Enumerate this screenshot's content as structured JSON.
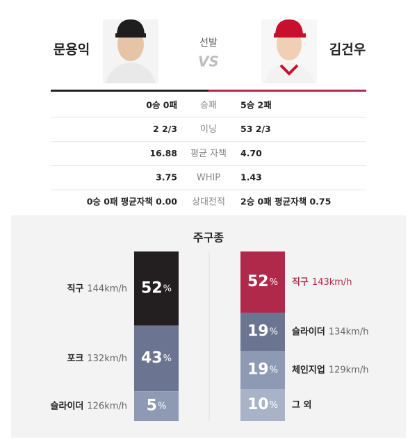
{
  "header": {
    "left_pitcher": "문용익",
    "label": "선발",
    "vs": "VS",
    "right_pitcher": "김건우"
  },
  "stats": [
    {
      "left": "0승 0패",
      "label": "승패",
      "right": "5승 2패"
    },
    {
      "left": "2 2/3",
      "label": "이닝",
      "right": "53 2/3"
    },
    {
      "left": "16.88",
      "label": "평균 자책",
      "right": "4.70"
    },
    {
      "left": "3.75",
      "label": "WHIP",
      "right": "1.43"
    },
    {
      "left": "0승 0패 평균자책 0.00",
      "label": "상대전적",
      "right": "2승 0패 평균자책 0.75"
    }
  ],
  "pitch_mix": {
    "title": "주구종",
    "unit": "%",
    "left": [
      {
        "name": "직구",
        "speed": "144km/h",
        "percent": 52,
        "color": "#231f20"
      },
      {
        "name": "포크",
        "speed": "132km/h",
        "percent": 43,
        "color": "#6b7591"
      },
      {
        "name": "슬라이더",
        "speed": "126km/h",
        "percent": 5,
        "color": "#8e9ab4"
      }
    ],
    "right": [
      {
        "name": "직구",
        "speed": "143km/h",
        "percent": 52,
        "color": "#b0294a"
      },
      {
        "name": "슬라이더",
        "speed": "134km/h",
        "percent": 19,
        "color": "#6b7591"
      },
      {
        "name": "체인지업",
        "speed": "129km/h",
        "percent": 19,
        "color": "#8e9ab4"
      },
      {
        "name": "그 외",
        "speed": null,
        "percent": 10,
        "color": "#a9b3c8"
      }
    ]
  }
}
